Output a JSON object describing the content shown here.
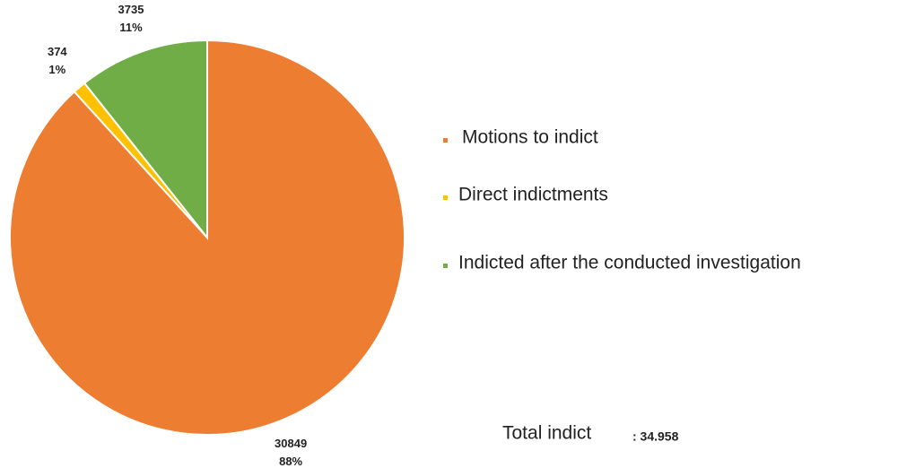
{
  "chart_data": {
    "type": "pie",
    "categories": [
      "Motions to indict",
      "Direct indictments",
      "Indicted after the conducted investigation"
    ],
    "values": [
      30849,
      374,
      3735
    ],
    "percent_labels": [
      "88%",
      "1%",
      "11%"
    ],
    "colors": [
      "#ed7d31",
      "#ffc000",
      "#70ad47"
    ],
    "legend": "right",
    "annotation": "Total indict",
    "total_label": ": 34.958"
  }
}
